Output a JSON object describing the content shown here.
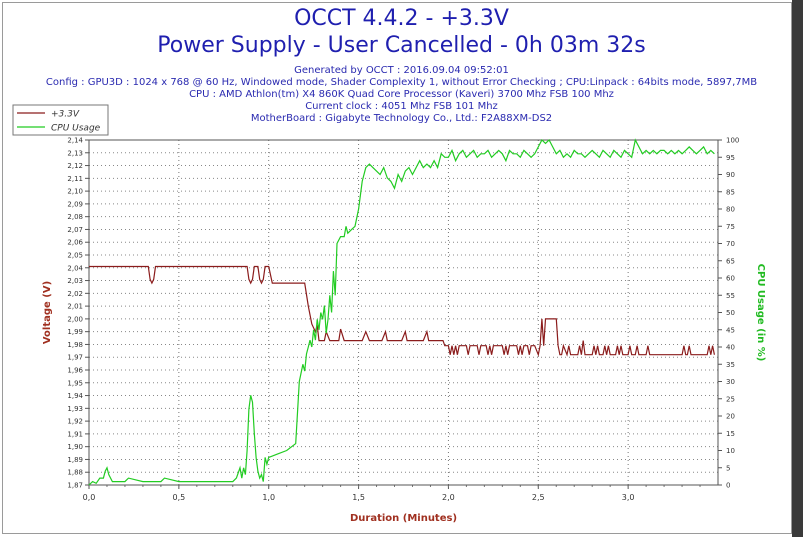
{
  "header": {
    "title_line1": "OCCT 4.4.2 - +3.3V",
    "title_line2": "Power Supply - User Cancelled - 0h 03m 32s",
    "generated": "Generated by OCCT : 2016.09.04 09:52:01",
    "config": "Config : GPU3D : 1024 x 768 @ 60 Hz, Windowed mode, Shader Complexity 1, without Error Checking ; CPU:Linpack : 64bits mode, 5897,7MB",
    "cpu": "CPU : AMD Athlon(tm) X4 860K Quad Core Processor (Kaveri) 3700 Mhz FSB 100 Mhz",
    "clock": "Current clock : 4051 Mhz FSB 101 Mhz",
    "motherboard": "MotherBoard : Gigabyte Technology Co., Ltd.: F2A88XM-DS2"
  },
  "colors": {
    "voltage": "#8b1c1c",
    "cpu": "#22cc22",
    "axis_title": "#a03020",
    "cpu_axis_title": "#22bb22",
    "header": "#1f1faf"
  },
  "chart_data": {
    "type": "line",
    "xlabel": "Duration (Minutes)",
    "ylabel_left": "Voltage (V)",
    "ylabel_right": "CPU Usage (in %)",
    "xlim": [
      0,
      3.5
    ],
    "ylim_left": [
      1.87,
      2.14
    ],
    "ylim_right": [
      0,
      100
    ],
    "x_ticks": [
      "0,0",
      "0,5",
      "1,0",
      "1,5",
      "2,0",
      "2,5",
      "3,0"
    ],
    "y_left_ticks": [
      "1,87",
      "1,88",
      "1,89",
      "1,90",
      "1,91",
      "1,92",
      "1,93",
      "1,94",
      "1,95",
      "1,96",
      "1,97",
      "1,98",
      "1,99",
      "2,00",
      "2,01",
      "2,02",
      "2,03",
      "2,04",
      "2,05",
      "2,06",
      "2,07",
      "2,08",
      "2,09",
      "2,10",
      "2,11",
      "2,12",
      "2,13",
      "2,14"
    ],
    "y_right_ticks": [
      "0",
      "5",
      "10",
      "15",
      "20",
      "25",
      "30",
      "35",
      "40",
      "45",
      "50",
      "55",
      "60",
      "65",
      "70",
      "75",
      "80",
      "85",
      "90",
      "95",
      "100"
    ],
    "grid": true,
    "legend_position": "top-left",
    "series": [
      {
        "name": "+3.3V",
        "axis": "left",
        "points": [
          [
            0,
            2.041
          ],
          [
            0.33,
            2.041
          ],
          [
            0.34,
            2.031
          ],
          [
            0.35,
            2.028
          ],
          [
            0.36,
            2.031
          ],
          [
            0.37,
            2.041
          ],
          [
            0.88,
            2.041
          ],
          [
            0.89,
            2.031
          ],
          [
            0.9,
            2.028
          ],
          [
            0.91,
            2.031
          ],
          [
            0.92,
            2.041
          ],
          [
            0.94,
            2.041
          ],
          [
            0.95,
            2.031
          ],
          [
            0.96,
            2.028
          ],
          [
            0.97,
            2.031
          ],
          [
            0.98,
            2.041
          ],
          [
            1.0,
            2.041
          ],
          [
            1.02,
            2.028
          ],
          [
            1.2,
            2.028
          ],
          [
            1.22,
            2.01
          ],
          [
            1.24,
            1.996
          ],
          [
            1.26,
            1.99
          ],
          [
            1.27,
            1.995
          ],
          [
            1.28,
            1.983
          ],
          [
            1.31,
            1.983
          ],
          [
            1.32,
            1.99
          ],
          [
            1.34,
            1.983
          ],
          [
            1.39,
            1.983
          ],
          [
            1.4,
            1.992
          ],
          [
            1.42,
            1.983
          ],
          [
            1.52,
            1.983
          ],
          [
            1.54,
            1.99
          ],
          [
            1.56,
            1.983
          ],
          [
            1.63,
            1.983
          ],
          [
            1.65,
            1.99
          ],
          [
            1.66,
            1.983
          ],
          [
            1.74,
            1.983
          ],
          [
            1.76,
            1.99
          ],
          [
            1.77,
            1.983
          ],
          [
            1.86,
            1.983
          ],
          [
            1.88,
            1.99
          ],
          [
            1.89,
            1.983
          ],
          [
            1.97,
            1.983
          ],
          [
            1.98,
            1.979
          ],
          [
            2.0,
            1.979
          ],
          [
            2.01,
            1.972
          ],
          [
            2.02,
            1.979
          ],
          [
            2.03,
            1.972
          ],
          [
            2.04,
            1.979
          ],
          [
            2.05,
            1.972
          ],
          [
            2.06,
            1.979
          ],
          [
            2.1,
            1.979
          ],
          [
            2.11,
            1.972
          ],
          [
            2.12,
            1.979
          ],
          [
            2.16,
            1.979
          ],
          [
            2.17,
            1.972
          ],
          [
            2.18,
            1.979
          ],
          [
            2.21,
            1.979
          ],
          [
            2.22,
            1.972
          ],
          [
            2.23,
            1.979
          ],
          [
            2.24,
            1.972
          ],
          [
            2.25,
            1.979
          ],
          [
            2.3,
            1.979
          ],
          [
            2.31,
            1.972
          ],
          [
            2.32,
            1.979
          ],
          [
            2.33,
            1.972
          ],
          [
            2.34,
            1.979
          ],
          [
            2.38,
            1.979
          ],
          [
            2.39,
            1.972
          ],
          [
            2.4,
            1.979
          ],
          [
            2.41,
            1.972
          ],
          [
            2.42,
            1.979
          ],
          [
            2.44,
            1.979
          ],
          [
            2.45,
            1.972
          ],
          [
            2.46,
            1.979
          ],
          [
            2.48,
            1.979
          ],
          [
            2.5,
            1.972
          ],
          [
            2.51,
            1.979
          ],
          [
            2.52,
            2.0
          ],
          [
            2.53,
            1.979
          ],
          [
            2.54,
            2.0
          ],
          [
            2.6,
            2.0
          ],
          [
            2.61,
            1.979
          ],
          [
            2.62,
            1.972
          ],
          [
            2.63,
            1.972
          ],
          [
            2.64,
            1.979
          ],
          [
            2.66,
            1.972
          ],
          [
            2.67,
            1.979
          ],
          [
            2.68,
            1.972
          ],
          [
            2.72,
            1.972
          ],
          [
            2.73,
            1.979
          ],
          [
            2.74,
            1.972
          ],
          [
            2.75,
            1.983
          ],
          [
            2.76,
            1.972
          ],
          [
            2.8,
            1.972
          ],
          [
            2.81,
            1.979
          ],
          [
            2.82,
            1.972
          ],
          [
            2.83,
            1.979
          ],
          [
            2.84,
            1.972
          ],
          [
            2.86,
            1.972
          ],
          [
            2.87,
            1.979
          ],
          [
            2.88,
            1.972
          ],
          [
            2.89,
            1.979
          ],
          [
            2.9,
            1.972
          ],
          [
            2.93,
            1.972
          ],
          [
            2.94,
            1.979
          ],
          [
            2.95,
            1.972
          ],
          [
            2.96,
            1.979
          ],
          [
            2.97,
            1.972
          ],
          [
            3.0,
            1.972
          ],
          [
            3.01,
            1.979
          ],
          [
            3.02,
            1.972
          ],
          [
            3.04,
            1.972
          ],
          [
            3.05,
            1.979
          ],
          [
            3.06,
            1.972
          ],
          [
            3.1,
            1.972
          ],
          [
            3.11,
            1.979
          ],
          [
            3.12,
            1.972
          ],
          [
            3.3,
            1.972
          ],
          [
            3.31,
            1.979
          ],
          [
            3.32,
            1.972
          ],
          [
            3.33,
            1.972
          ],
          [
            3.34,
            1.979
          ],
          [
            3.35,
            1.972
          ],
          [
            3.44,
            1.972
          ],
          [
            3.45,
            1.979
          ],
          [
            3.46,
            1.972
          ],
          [
            3.47,
            1.979
          ],
          [
            3.48,
            1.972
          ]
        ]
      },
      {
        "name": "CPU Usage",
        "axis": "right",
        "points": [
          [
            0,
            0
          ],
          [
            0.02,
            1
          ],
          [
            0.04,
            0.5
          ],
          [
            0.06,
            2
          ],
          [
            0.08,
            2
          ],
          [
            0.09,
            4
          ],
          [
            0.1,
            5
          ],
          [
            0.11,
            3
          ],
          [
            0.13,
            1
          ],
          [
            0.2,
            1
          ],
          [
            0.22,
            2
          ],
          [
            0.3,
            1
          ],
          [
            0.4,
            1
          ],
          [
            0.42,
            2
          ],
          [
            0.5,
            1
          ],
          [
            0.55,
            1
          ],
          [
            0.6,
            1
          ],
          [
            0.7,
            1
          ],
          [
            0.8,
            1
          ],
          [
            0.82,
            2
          ],
          [
            0.84,
            5
          ],
          [
            0.85,
            2
          ],
          [
            0.86,
            5
          ],
          [
            0.87,
            3
          ],
          [
            0.88,
            10
          ],
          [
            0.89,
            22
          ],
          [
            0.9,
            26
          ],
          [
            0.91,
            24
          ],
          [
            0.92,
            15
          ],
          [
            0.93,
            8
          ],
          [
            0.94,
            4
          ],
          [
            0.95,
            2
          ],
          [
            0.96,
            3
          ],
          [
            0.97,
            1
          ],
          [
            0.98,
            8
          ],
          [
            0.99,
            6
          ],
          [
            1.0,
            8
          ],
          [
            1.05,
            9
          ],
          [
            1.1,
            10
          ],
          [
            1.15,
            12
          ],
          [
            1.17,
            30
          ],
          [
            1.19,
            35
          ],
          [
            1.2,
            33
          ],
          [
            1.21,
            38
          ],
          [
            1.22,
            40
          ],
          [
            1.23,
            42
          ],
          [
            1.24,
            40
          ],
          [
            1.25,
            45
          ],
          [
            1.26,
            42
          ],
          [
            1.27,
            48
          ],
          [
            1.28,
            45
          ],
          [
            1.29,
            50
          ],
          [
            1.3,
            48
          ],
          [
            1.31,
            52
          ],
          [
            1.32,
            44
          ],
          [
            1.33,
            48
          ],
          [
            1.34,
            55
          ],
          [
            1.35,
            50
          ],
          [
            1.36,
            62
          ],
          [
            1.37,
            55
          ],
          [
            1.38,
            70
          ],
          [
            1.4,
            72
          ],
          [
            1.42,
            72
          ],
          [
            1.43,
            75
          ],
          [
            1.44,
            73
          ],
          [
            1.46,
            74
          ],
          [
            1.48,
            75
          ],
          [
            1.5,
            80
          ],
          [
            1.52,
            88
          ],
          [
            1.54,
            92
          ],
          [
            1.56,
            93
          ],
          [
            1.58,
            92
          ],
          [
            1.6,
            91
          ],
          [
            1.62,
            90
          ],
          [
            1.64,
            92
          ],
          [
            1.66,
            89
          ],
          [
            1.68,
            88
          ],
          [
            1.7,
            86
          ],
          [
            1.72,
            90
          ],
          [
            1.74,
            88
          ],
          [
            1.76,
            91
          ],
          [
            1.78,
            92
          ],
          [
            1.8,
            90
          ],
          [
            1.82,
            92
          ],
          [
            1.84,
            94
          ],
          [
            1.86,
            92
          ],
          [
            1.88,
            93
          ],
          [
            1.9,
            92
          ],
          [
            1.92,
            94
          ],
          [
            1.94,
            92
          ],
          [
            1.96,
            96
          ],
          [
            1.98,
            95
          ],
          [
            2.0,
            95
          ],
          [
            2.02,
            97
          ],
          [
            2.04,
            94
          ],
          [
            2.06,
            96
          ],
          [
            2.08,
            97
          ],
          [
            2.1,
            95
          ],
          [
            2.12,
            96
          ],
          [
            2.14,
            97
          ],
          [
            2.16,
            95
          ],
          [
            2.18,
            96
          ],
          [
            2.2,
            96
          ],
          [
            2.22,
            97
          ],
          [
            2.24,
            95
          ],
          [
            2.26,
            96
          ],
          [
            2.28,
            97
          ],
          [
            2.3,
            96
          ],
          [
            2.32,
            94
          ],
          [
            2.34,
            97
          ],
          [
            2.36,
            96
          ],
          [
            2.38,
            96
          ],
          [
            2.4,
            95
          ],
          [
            2.42,
            97
          ],
          [
            2.44,
            96
          ],
          [
            2.46,
            95
          ],
          [
            2.48,
            96
          ],
          [
            2.5,
            98
          ],
          [
            2.52,
            100
          ],
          [
            2.54,
            99
          ],
          [
            2.56,
            100
          ],
          [
            2.58,
            98
          ],
          [
            2.6,
            96
          ],
          [
            2.62,
            97
          ],
          [
            2.64,
            95
          ],
          [
            2.66,
            96
          ],
          [
            2.68,
            95
          ],
          [
            2.7,
            97
          ],
          [
            2.72,
            96
          ],
          [
            2.74,
            96
          ],
          [
            2.76,
            95
          ],
          [
            2.78,
            96
          ],
          [
            2.8,
            97
          ],
          [
            2.82,
            96
          ],
          [
            2.84,
            95
          ],
          [
            2.86,
            97
          ],
          [
            2.88,
            96
          ],
          [
            2.9,
            95
          ],
          [
            2.92,
            97
          ],
          [
            2.94,
            96
          ],
          [
            2.96,
            95
          ],
          [
            2.98,
            97
          ],
          [
            3.0,
            96
          ],
          [
            3.02,
            95
          ],
          [
            3.04,
            100
          ],
          [
            3.06,
            98
          ],
          [
            3.08,
            96
          ],
          [
            3.1,
            97
          ],
          [
            3.12,
            96
          ],
          [
            3.14,
            97
          ],
          [
            3.16,
            96
          ],
          [
            3.18,
            97
          ],
          [
            3.2,
            97
          ],
          [
            3.22,
            96
          ],
          [
            3.24,
            97
          ],
          [
            3.26,
            96
          ],
          [
            3.28,
            97
          ],
          [
            3.3,
            96
          ],
          [
            3.32,
            97
          ],
          [
            3.34,
            98
          ],
          [
            3.36,
            97
          ],
          [
            3.38,
            96
          ],
          [
            3.4,
            97
          ],
          [
            3.42,
            98
          ],
          [
            3.44,
            96
          ],
          [
            3.46,
            97
          ],
          [
            3.48,
            96
          ]
        ]
      }
    ]
  }
}
